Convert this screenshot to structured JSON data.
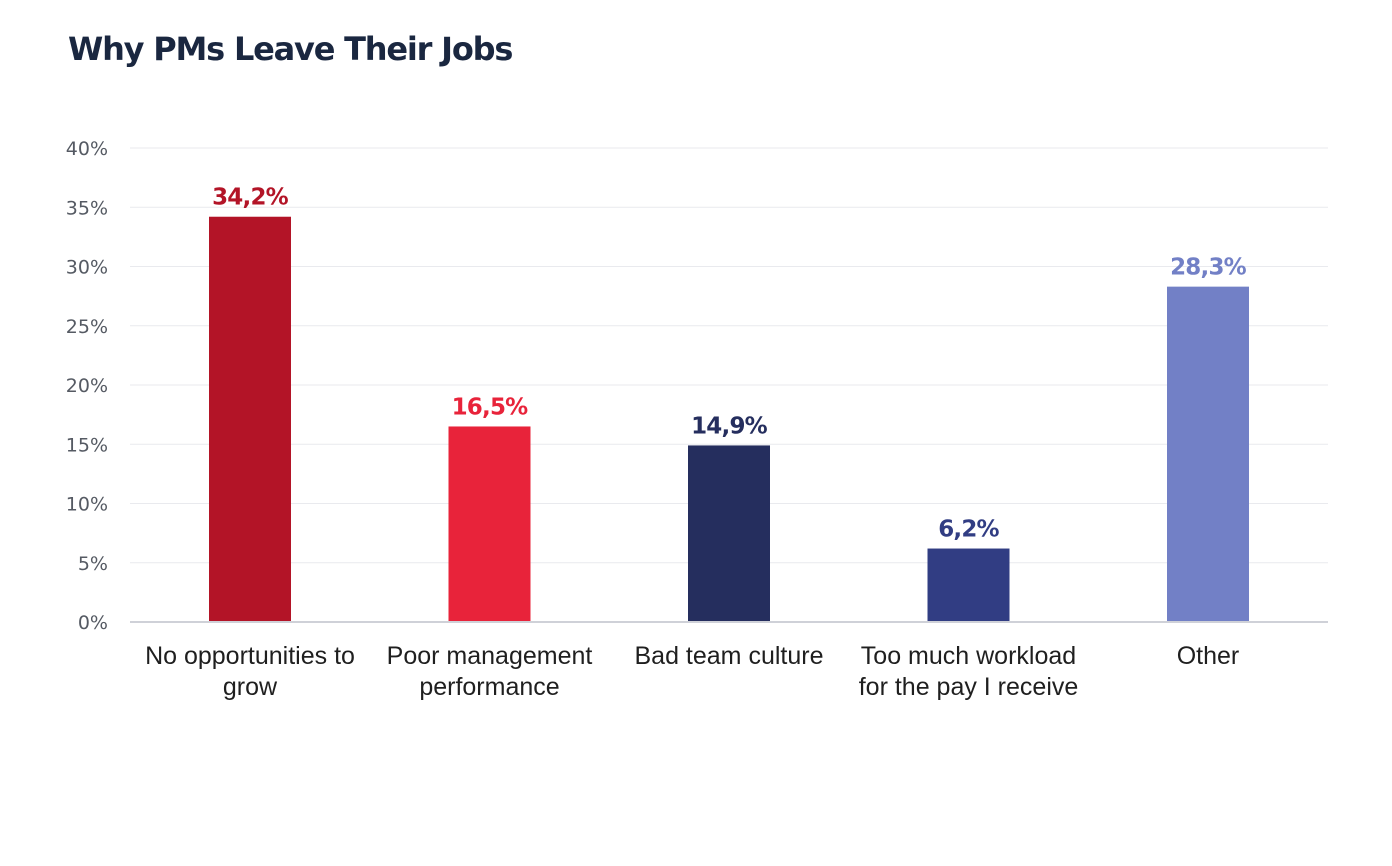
{
  "chart_data": {
    "type": "bar",
    "title": "Why PMs Leave Their Jobs",
    "xlabel": "",
    "ylabel": "",
    "ylim": [
      0,
      40
    ],
    "yticks": [
      0,
      5,
      10,
      15,
      20,
      25,
      30,
      35,
      40
    ],
    "ytick_labels": [
      "0%",
      "5%",
      "10%",
      "15%",
      "20%",
      "25%",
      "30%",
      "35%",
      "40%"
    ],
    "grid": true,
    "categories": [
      [
        "No opportunities to",
        "grow"
      ],
      [
        "Poor management",
        "performance"
      ],
      [
        "Bad team culture"
      ],
      [
        "Too much workload",
        "for the pay I receive"
      ],
      [
        "Other"
      ]
    ],
    "values": [
      34.2,
      16.5,
      14.9,
      6.2,
      28.3
    ],
    "value_labels": [
      "34,2%",
      "16,5%",
      "14,9%",
      "6,2%",
      "28,3%"
    ],
    "colors": [
      "#b31427",
      "#e8233a",
      "#252e5e",
      "#313d83",
      "#7280c6"
    ]
  }
}
